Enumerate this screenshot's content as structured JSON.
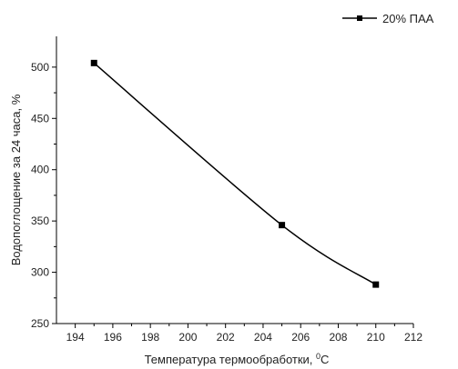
{
  "chart_data": {
    "type": "line",
    "x": [
      195,
      205,
      210
    ],
    "series": [
      {
        "name": "20% ПАА",
        "values": [
          504,
          346,
          288
        ],
        "color": "#000000",
        "marker": "square"
      }
    ],
    "xlabel_main": "Температура термообработки, ",
    "xlabel_sup": "0",
    "xlabel_unit": "C",
    "ylabel": "Водопоглощение за 24 часа, %",
    "xlim": [
      193,
      212
    ],
    "ylim": [
      250,
      530
    ],
    "xticks": [
      194,
      196,
      198,
      200,
      202,
      204,
      206,
      208,
      210,
      212
    ],
    "yticks": [
      250,
      300,
      350,
      400,
      450,
      500
    ],
    "legend_position": "top-right",
    "grid": false
  }
}
